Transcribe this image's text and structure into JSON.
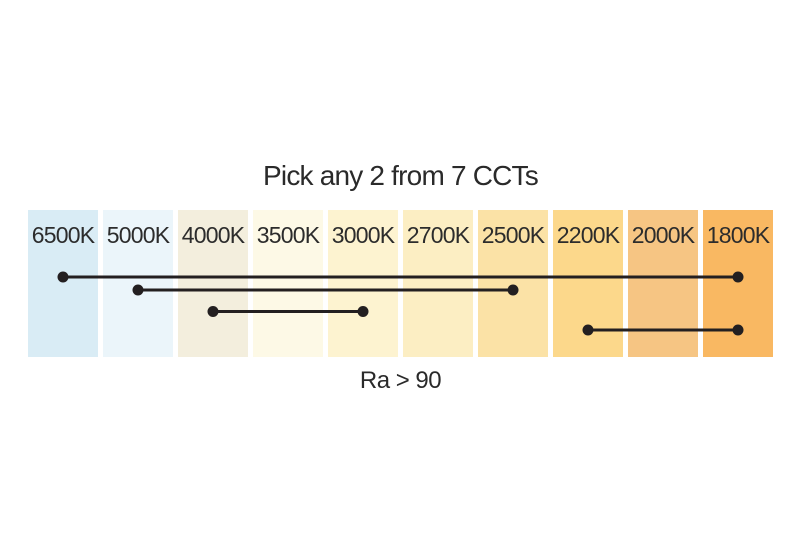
{
  "title": "Pick any 2 from 7 CCTs",
  "footer": "Ra > 90",
  "colors": {
    "text": "#2a2a2a",
    "line": "#231f20",
    "background": "#ffffff"
  },
  "columns": [
    {
      "label": "6500K",
      "color": "#d9ecf5"
    },
    {
      "label": "5000K",
      "color": "#ebf5fa"
    },
    {
      "label": "4000K",
      "color": "#f3eedd"
    },
    {
      "label": "3500K",
      "color": "#fdf9e6"
    },
    {
      "label": "3000K",
      "color": "#fdf3d0"
    },
    {
      "label": "2700K",
      "color": "#fceec3"
    },
    {
      "label": "2500K",
      "color": "#fbe2a6"
    },
    {
      "label": "2200K",
      "color": "#fcd88b"
    },
    {
      "label": "2000K",
      "color": "#f6c583"
    },
    {
      "label": "1800K",
      "color": "#f9b862"
    }
  ],
  "ranges": [
    {
      "from": "6500K",
      "to": "1800K"
    },
    {
      "from": "5000K",
      "to": "2500K"
    },
    {
      "from": "4000K",
      "to": "3000K"
    },
    {
      "from": "2200K",
      "to": "1800K"
    }
  ]
}
